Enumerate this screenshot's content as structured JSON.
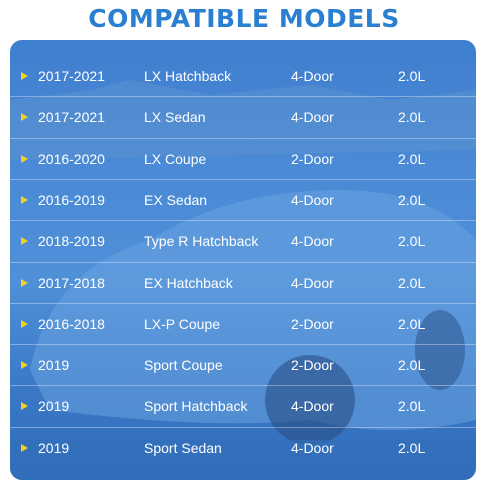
{
  "header": {
    "title": "COMPATIBLE MODELS"
  },
  "table": {
    "rows": [
      [
        "2017-2021",
        "LX Hatchback",
        "4-Door",
        "2.0L"
      ],
      [
        "2017-2021",
        "LX Sedan",
        "4-Door",
        "2.0L"
      ],
      [
        "2016-2020",
        "LX Coupe",
        "2-Door",
        "2.0L"
      ],
      [
        "2016-2019",
        "EX Sedan",
        "4-Door",
        "2.0L"
      ],
      [
        "2018-2019",
        "Type R Hatchback",
        "4-Door",
        "2.0L"
      ],
      [
        "2017-2018",
        "EX Hatchback",
        "4-Door",
        "2.0L"
      ],
      [
        "2016-2018",
        "LX-P Coupe",
        "2-Door",
        "2.0L"
      ],
      [
        "2019",
        "Sport Coupe",
        "2-Door",
        "2.0L"
      ],
      [
        "2019",
        "Sport Hatchback",
        "4-Door",
        "2.0L"
      ],
      [
        "2019",
        "Sport Sedan",
        "4-Door",
        "2.0L"
      ]
    ]
  }
}
